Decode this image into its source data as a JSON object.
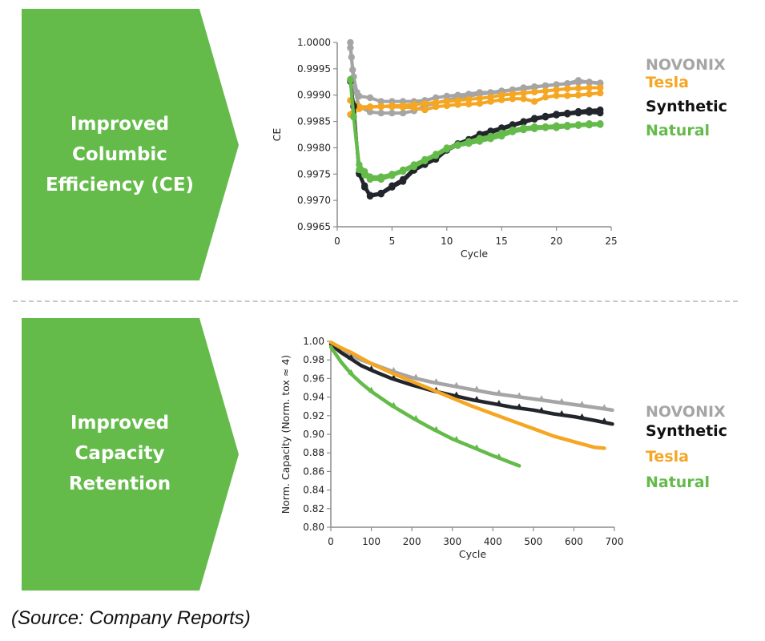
{
  "panels": [
    {
      "title_lines": [
        "Improved",
        "Columbic",
        "Efficiency (CE)"
      ]
    },
    {
      "title_lines": [
        "Improved",
        "Capacity",
        "Retention"
      ]
    }
  ],
  "colors": {
    "arrow_fill": "#64bb4a",
    "novonix": "#a5a5a5",
    "tesla": "#f5a623",
    "synthetic": "#22252b",
    "natural": "#64bb4a",
    "divider": "#c8c8c8"
  },
  "legend1": [
    "NOVONIX",
    "Tesla",
    "Synthetic",
    "Natural"
  ],
  "legend2": [
    "NOVONIX",
    "Synthetic",
    "Tesla",
    "Natural"
  ],
  "source": "(Source: Company Reports)",
  "chart_data": [
    {
      "type": "line",
      "title": "",
      "xlabel": "Cycle",
      "ylabel": "CE",
      "xlim": [
        0,
        25
      ],
      "ylim": [
        0.9965,
        1.0
      ],
      "xticks": [
        "0",
        "5",
        "10",
        "15",
        "20",
        "25"
      ],
      "yticks": [
        "0.9965",
        "0.9970",
        "0.9975",
        "0.9980",
        "0.9985",
        "0.9990",
        "0.9995",
        "1.0000"
      ],
      "xtick_values": [
        0,
        5,
        10,
        15,
        20,
        25
      ],
      "ytick_values": [
        0.9965,
        0.997,
        0.9975,
        0.998,
        0.9985,
        0.999,
        0.9995,
        1.0
      ],
      "markers": true,
      "grid": false,
      "legend_position": "right",
      "series": [
        {
          "name": "NOVONIX",
          "color_key": "novonix",
          "runs": [
            {
              "x": [
                1.2,
                1.3,
                1.5,
                1.8,
                2,
                3,
                4,
                5,
                6,
                7,
                8,
                9,
                10,
                11,
                12,
                13,
                14,
                15,
                16,
                17,
                18,
                19,
                20,
                21,
                22,
                23,
                24
              ],
              "y": [
                1.0,
                0.99972,
                0.99935,
                0.99905,
                0.99898,
                0.99895,
                0.99888,
                0.99888,
                0.99888,
                0.99888,
                0.9989,
                0.99895,
                0.99898,
                0.999,
                0.99902,
                0.99905,
                0.99905,
                0.99908,
                0.9991,
                0.99912,
                0.99915,
                0.99918,
                0.9992,
                0.99922,
                0.99928,
                0.99924,
                0.99922
              ]
            },
            {
              "x": [
                1.2,
                1.4,
                1.6,
                2,
                3,
                4,
                5,
                6,
                7,
                8,
                9,
                10,
                11,
                12,
                13,
                14,
                15,
                16,
                17,
                18,
                19,
                20,
                21,
                22,
                23,
                24
              ],
              "y": [
                0.9999,
                0.99948,
                0.9991,
                0.99878,
                0.99868,
                0.99866,
                0.99866,
                0.99866,
                0.9987,
                0.9988,
                0.99885,
                0.9989,
                0.99895,
                0.99898,
                0.99902,
                0.99904,
                0.99906,
                0.9991,
                0.99914,
                0.99916,
                0.99918,
                0.9992,
                0.99922,
                0.99924,
                0.99925,
                0.99923
              ]
            }
          ]
        },
        {
          "name": "Tesla",
          "color_key": "tesla",
          "runs": [
            {
              "x": [
                1.2,
                1.5,
                2,
                3,
                4,
                5,
                6,
                7,
                8,
                9,
                10,
                11,
                12,
                13,
                14,
                15,
                16,
                17,
                18,
                19,
                20,
                21,
                22,
                23,
                24
              ],
              "y": [
                0.9989,
                0.99884,
                0.99878,
                0.99878,
                0.99878,
                0.9988,
                0.9988,
                0.99882,
                0.99884,
                0.99886,
                0.99888,
                0.9989,
                0.99892,
                0.99894,
                0.99896,
                0.999,
                0.99902,
                0.99904,
                0.99906,
                0.99908,
                0.9991,
                0.99912,
                0.99913,
                0.99914,
                0.99914
              ]
            },
            {
              "x": [
                1.2,
                1.5,
                2,
                3,
                4,
                5,
                6,
                7,
                8,
                9,
                10,
                11,
                12,
                13,
                14,
                15,
                16,
                17,
                18,
                19,
                20,
                21,
                22,
                23,
                24
              ],
              "y": [
                0.99863,
                0.99868,
                0.99874,
                0.99877,
                0.99879,
                0.99878,
                0.99877,
                0.99876,
                0.99872,
                0.99878,
                0.9988,
                0.99882,
                0.99883,
                0.99884,
                0.99888,
                0.99891,
                0.99893,
                0.99893,
                0.99888,
                0.99896,
                0.99899,
                0.99899,
                0.999,
                0.99902,
                0.99904
              ]
            }
          ]
        },
        {
          "name": "Synthetic",
          "color_key": "synthetic",
          "runs": [
            {
              "x": [
                1.2,
                1.5,
                2,
                2.5,
                3,
                4,
                5,
                6,
                7,
                8,
                9,
                10,
                11,
                12,
                13,
                14,
                15,
                16,
                17,
                18,
                19,
                20,
                21,
                22,
                23,
                24
              ],
              "y": [
                0.99926,
                0.9988,
                0.9975,
                0.99725,
                0.99708,
                0.99712,
                0.99725,
                0.99736,
                0.99757,
                0.99768,
                0.99778,
                0.99795,
                0.99805,
                0.99813,
                0.99822,
                0.99829,
                0.99835,
                0.99842,
                0.99848,
                0.99854,
                0.99858,
                0.99862,
                0.99864,
                0.99866,
                0.99867,
                0.99866
              ]
            },
            {
              "x": [
                1.2,
                1.5,
                2,
                2.5,
                3,
                4,
                5,
                6,
                7,
                8,
                9,
                10,
                11,
                12,
                13,
                14,
                15,
                16,
                17,
                18,
                19,
                20,
                21,
                22,
                23,
                24
              ],
              "y": [
                0.99926,
                0.99878,
                0.99752,
                0.99728,
                0.9971,
                0.99714,
                0.99728,
                0.9974,
                0.9976,
                0.99772,
                0.99782,
                0.99798,
                0.99808,
                0.99816,
                0.99826,
                0.99832,
                0.99838,
                0.99844,
                0.9985,
                0.99856,
                0.9986,
                0.99864,
                0.99866,
                0.99869,
                0.99871,
                0.99872
              ]
            }
          ]
        },
        {
          "name": "Natural",
          "color_key": "natural",
          "runs": [
            {
              "x": [
                1.2,
                1.5,
                2,
                2.5,
                3,
                4,
                5,
                6,
                7,
                8,
                9,
                10,
                11,
                12,
                13,
                14,
                15,
                16,
                17,
                18,
                19,
                20,
                21,
                22,
                23,
                24
              ],
              "y": [
                0.9993,
                0.9986,
                0.99768,
                0.99755,
                0.99745,
                0.99745,
                0.9975,
                0.99758,
                0.99768,
                0.99778,
                0.99788,
                0.998,
                0.99806,
                0.99812,
                0.99818,
                0.99822,
                0.99828,
                0.99834,
                0.99838,
                0.9984,
                0.9984,
                0.99842,
                0.99843,
                0.99844,
                0.99846,
                0.99846
              ]
            },
            {
              "x": [
                1.2,
                1.5,
                2,
                2.5,
                3,
                4,
                5,
                6,
                7,
                8,
                9,
                10,
                11,
                12,
                13,
                14,
                15,
                16,
                17,
                18,
                19,
                20,
                21,
                22,
                23,
                24
              ],
              "y": [
                0.99928,
                0.99858,
                0.99758,
                0.99748,
                0.9974,
                0.9974,
                0.99747,
                0.99755,
                0.99764,
                0.99775,
                0.99785,
                0.99797,
                0.99804,
                0.99808,
                0.99812,
                0.99817,
                0.99822,
                0.9983,
                0.99834,
                0.99836,
                0.99838,
                0.99838,
                0.9984,
                0.99842,
                0.99843,
                0.99844
              ]
            }
          ]
        }
      ]
    },
    {
      "type": "line",
      "title": "",
      "xlabel": "Cycle",
      "ylabel": "Norm. Capacity (Norm. tox ≈ 4)",
      "xlim": [
        0,
        700
      ],
      "ylim": [
        0.8,
        1.0
      ],
      "xticks": [
        "0",
        "100",
        "200",
        "300",
        "400",
        "500",
        "600",
        "700"
      ],
      "yticks": [
        "0.80",
        "0.82",
        "0.84",
        "0.86",
        "0.88",
        "0.90",
        "0.92",
        "0.94",
        "0.96",
        "0.98",
        "1.00"
      ],
      "xtick_values": [
        0,
        100,
        200,
        300,
        400,
        500,
        600,
        700
      ],
      "ytick_values": [
        0.8,
        0.82,
        0.84,
        0.86,
        0.88,
        0.9,
        0.92,
        0.94,
        0.96,
        0.98,
        1.0
      ],
      "markers": false,
      "grid": false,
      "legend_position": "right",
      "series": [
        {
          "name": "NOVONIX",
          "color_key": "novonix",
          "x": [
            0,
            25,
            50,
            75,
            100,
            150,
            200,
            250,
            300,
            350,
            400,
            450,
            500,
            550,
            600,
            650,
            695
          ],
          "y": [
            0.998,
            0.99,
            0.985,
            0.98,
            0.976,
            0.968,
            0.961,
            0.956,
            0.952,
            0.948,
            0.944,
            0.941,
            0.938,
            0.935,
            0.932,
            0.929,
            0.926
          ],
          "notch_x": [
            155,
            210,
            260,
            310,
            360,
            415,
            465,
            520,
            570,
            620,
            675
          ]
        },
        {
          "name": "Synthetic",
          "color_key": "synthetic",
          "x": [
            0,
            25,
            50,
            75,
            100,
            150,
            200,
            250,
            300,
            350,
            400,
            450,
            500,
            550,
            600,
            650,
            695
          ],
          "y": [
            0.997,
            0.988,
            0.981,
            0.974,
            0.969,
            0.96,
            0.953,
            0.947,
            0.942,
            0.937,
            0.933,
            0.929,
            0.926,
            0.922,
            0.919,
            0.915,
            0.911
          ],
          "notch_x": [
            50,
            100,
            155,
            210,
            260,
            310,
            360,
            415,
            465,
            520,
            570,
            620,
            675
          ]
        },
        {
          "name": "Tesla",
          "color_key": "tesla",
          "x": [
            0,
            25,
            50,
            75,
            100,
            150,
            200,
            250,
            300,
            350,
            400,
            450,
            500,
            550,
            600,
            650,
            675
          ],
          "y": [
            0.999,
            0.993,
            0.988,
            0.982,
            0.976,
            0.966,
            0.957,
            0.948,
            0.939,
            0.93,
            0.922,
            0.914,
            0.906,
            0.898,
            0.892,
            0.886,
            0.885
          ]
        },
        {
          "name": "Natural",
          "color_key": "natural",
          "x": [
            0,
            25,
            50,
            75,
            100,
            150,
            200,
            250,
            300,
            350,
            400,
            465
          ],
          "y": [
            0.994,
            0.978,
            0.965,
            0.955,
            0.946,
            0.931,
            0.918,
            0.906,
            0.895,
            0.886,
            0.877,
            0.866
          ],
          "notch_x": [
            50,
            100,
            155,
            210,
            260,
            310,
            360,
            415
          ]
        }
      ]
    }
  ]
}
